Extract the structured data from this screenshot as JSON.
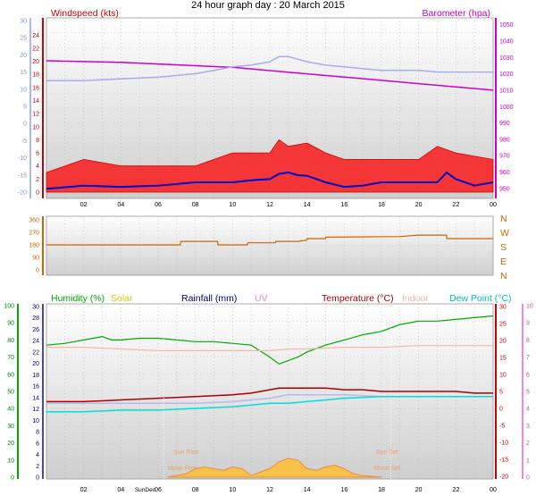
{
  "title": "24 hour graph day : 20 March 2015",
  "colors": {
    "wind": "#cc0000",
    "gust_fill": "#ff0000",
    "avg_wind": "#0000cc",
    "wind_axis": "#aab8ee",
    "baro": "#cc00cc",
    "baro_line": "#aaaaee",
    "temp": "#aa0000",
    "humidity": "#00aa00",
    "solar": "#cccc00",
    "rain": "#000080",
    "uv": "#ee88dd",
    "indoor": "#f4b8a4",
    "dewpoint": "#00dddd",
    "winddir": "#cc6600",
    "solar_fill": "#ffc030"
  },
  "chart_data": [
    {
      "type": "line",
      "legend": {
        "windspeed": "Windspeed (kts)",
        "barometer": "Barometer (hpa)"
      },
      "x_tick_labels": [
        "02",
        "04",
        "06",
        "08",
        "10",
        "12",
        "14",
        "16",
        "18",
        "20",
        "22",
        "00"
      ],
      "left_axis_wind": {
        "ticks": [
          0,
          2,
          4,
          6,
          8,
          10,
          12,
          14,
          16,
          18,
          20,
          22,
          24
        ],
        "ylim": [
          0,
          25
        ]
      },
      "left_axis_secondary": {
        "ticks": [
          "-20",
          "-15",
          "-10",
          "-5",
          "0",
          "5",
          "10",
          "15",
          "20",
          "25",
          "30"
        ]
      },
      "right_axis_baro": {
        "ticks": [
          950,
          960,
          970,
          980,
          990,
          1000,
          1010,
          1020,
          1030,
          1040,
          1050
        ],
        "ylim": [
          945,
          1052
        ]
      },
      "series": [
        {
          "name": "Barometer (hpa)",
          "axis": "baro",
          "x": [
            0,
            2,
            4,
            6,
            8,
            10,
            12,
            14,
            16,
            18,
            20,
            22,
            24
          ],
          "values": [
            1028,
            1027.5,
            1027,
            1026,
            1025,
            1024,
            1022,
            1020,
            1018,
            1016,
            1014,
            1012,
            1010
          ]
        },
        {
          "axis": "secondary",
          "x": [
            0,
            2,
            4,
            6,
            8,
            9,
            10,
            11,
            12,
            12.5,
            13,
            14,
            15,
            16,
            17,
            18,
            19,
            20,
            21,
            22,
            23,
            24
          ],
          "values": [
            12.5,
            12.5,
            13,
            13.5,
            14.5,
            15.5,
            16.5,
            17,
            18,
            19.5,
            19.5,
            18,
            17,
            16.5,
            16,
            15.5,
            15.5,
            15.5,
            15,
            15,
            15,
            15
          ]
        },
        {
          "axis": "wind",
          "x": [
            0,
            2,
            4,
            6,
            8,
            10,
            11,
            12,
            12.5,
            13,
            13.5,
            14,
            15,
            16,
            17,
            18,
            19,
            20,
            21,
            21.5,
            22,
            23,
            24
          ],
          "values": [
            0.5,
            1,
            0.8,
            1,
            1.5,
            1.5,
            1.8,
            2,
            2.8,
            3,
            2.6,
            2.5,
            1.5,
            0.8,
            1,
            1.5,
            1.5,
            1.5,
            1.5,
            3,
            2,
            1,
            1.5
          ]
        }
      ],
      "gust_band": {
        "x": [
          0,
          1,
          2,
          4,
          6,
          8,
          10,
          12,
          12.5,
          13,
          14,
          15,
          16,
          18,
          20,
          21,
          22,
          24
        ],
        "values": [
          3,
          4,
          5,
          4,
          4,
          4,
          6,
          6,
          8,
          7,
          7.5,
          6,
          5,
          5,
          5,
          7,
          6,
          5
        ]
      }
    },
    {
      "type": "line",
      "right_labels": [
        "N",
        "W",
        "S",
        "E",
        "N"
      ],
      "y_ticks": [
        0,
        90,
        180,
        270,
        360
      ],
      "ylim": [
        0,
        360
      ],
      "series": [
        {
          "x": [
            0,
            2,
            4,
            6,
            7.2,
            7.21,
            9.2,
            9.21,
            10.8,
            10.81,
            12,
            12.3,
            12.31,
            13.5,
            14,
            14,
            15,
            15,
            19,
            20,
            21.5,
            21.51,
            24
          ],
          "values": [
            180,
            180,
            180,
            180,
            180,
            205,
            205,
            180,
            180,
            195,
            195,
            195,
            205,
            205,
            215,
            225,
            225,
            235,
            240,
            250,
            250,
            225,
            225
          ]
        }
      ]
    },
    {
      "type": "area",
      "legend": {
        "humidity": "Humidity (%)",
        "solar": "Solar",
        "rainfall": "Rainfall (mm)",
        "uv": "UV",
        "temperature": "Temperature (°C)",
        "indoor": "Indoor",
        "dewpoint": "Dew Point (°C)"
      },
      "left_axis_humidity": {
        "ticks": [
          0,
          10,
          20,
          30,
          40,
          50,
          60,
          70,
          80,
          90,
          100
        ],
        "ylim": [
          0,
          100
        ]
      },
      "left_axis_rain": {
        "ticks": [
          0,
          2,
          4,
          6,
          8,
          10,
          12,
          14,
          16,
          18,
          20,
          22,
          24,
          26,
          28,
          30
        ]
      },
      "right_axis_temp": {
        "ticks": [
          -20,
          -15,
          -10,
          -5,
          0,
          5,
          10,
          15,
          20,
          25,
          30
        ],
        "ylim": [
          -20,
          30
        ]
      },
      "right_axis_uv": {
        "ticks": [
          0,
          1,
          2,
          3,
          4,
          5,
          6,
          7,
          8,
          9,
          10
        ],
        "ylim": [
          0,
          10
        ]
      },
      "x_tick_labels": [
        "02",
        "04",
        "06",
        "08",
        "10",
        "12",
        "14",
        "16",
        "18",
        "20",
        "22",
        "00"
      ],
      "annotations": {
        "sunrise": "Sun Rise",
        "moonrise": "Moon Rise",
        "sunset": "Sun Set",
        "moonset": "Moon Set",
        "sundec": "SunDec"
      },
      "series": [
        {
          "name": "Humidity (%)",
          "axis": "humidity",
          "x": [
            0,
            1,
            2,
            3,
            3.5,
            4,
            5,
            6,
            7,
            8,
            9,
            10,
            11,
            12,
            12.5,
            13,
            13.5,
            14,
            15,
            16,
            17,
            18,
            18.5,
            19,
            20,
            21,
            22,
            23,
            24
          ],
          "values": [
            77,
            78,
            80,
            82,
            80,
            80,
            81,
            81,
            80,
            79,
            79,
            78,
            77,
            70,
            66,
            68,
            70,
            73,
            77,
            80,
            83,
            85,
            87,
            89,
            91,
            91,
            92,
            93,
            94
          ]
        },
        {
          "name": "Indoor",
          "axis": "temp",
          "x": [
            0,
            2,
            4,
            6,
            8,
            10,
            12,
            13,
            14,
            16,
            18,
            20,
            22,
            24
          ],
          "values": [
            18,
            18,
            17.5,
            17,
            17,
            17,
            17,
            17.5,
            17.5,
            18,
            18,
            18.5,
            18.5,
            18.5
          ]
        },
        {
          "name": "Temperature (°C)",
          "axis": "temp",
          "x": [
            0,
            2,
            4,
            6,
            8,
            10,
            11,
            12,
            12.5,
            13,
            14,
            15,
            16,
            17,
            18,
            19,
            20,
            21,
            22,
            23,
            24
          ],
          "values": [
            2,
            2,
            2.5,
            3,
            3.5,
            4,
            4.5,
            5.5,
            6,
            6,
            6,
            6,
            5.5,
            5.5,
            5,
            5,
            5,
            5,
            5,
            4.5,
            4.5
          ]
        },
        {
          "name": "UV",
          "axis": "temp",
          "x": [
            0,
            4,
            6,
            8,
            10,
            11,
            12,
            13,
            14,
            15,
            16,
            18,
            20,
            22,
            24
          ],
          "values": [
            1.5,
            1.5,
            1.5,
            1.5,
            2,
            2.5,
            3,
            4,
            4,
            4,
            4,
            3.5,
            3.5,
            3.5,
            3.5
          ]
        },
        {
          "name": "Dew Point (°C)",
          "axis": "temp",
          "x": [
            0,
            1,
            2,
            4,
            6,
            8,
            10,
            11,
            12,
            13,
            14,
            15,
            16,
            18,
            20,
            22,
            24
          ],
          "values": [
            -1,
            -1,
            -1,
            -0.5,
            -0.5,
            0,
            0.5,
            1,
            1.5,
            1.5,
            2,
            2.5,
            3,
            3.5,
            3.5,
            3.5,
            3.5
          ]
        },
        {
          "name": "Solar",
          "axis": "humidity",
          "x": [
            6.5,
            7,
            7.5,
            8,
            8.5,
            9,
            9.5,
            10,
            10.5,
            11,
            11.5,
            12,
            12.5,
            13,
            13.5,
            14,
            14.5,
            15,
            15.5,
            16,
            16.5,
            17,
            17.5,
            18
          ],
          "values": [
            0,
            1,
            2,
            5,
            6,
            5,
            4,
            6,
            5,
            1,
            3,
            5,
            9,
            11,
            10,
            5,
            4,
            6,
            7,
            5,
            2,
            1,
            0.5,
            0
          ]
        }
      ]
    }
  ]
}
